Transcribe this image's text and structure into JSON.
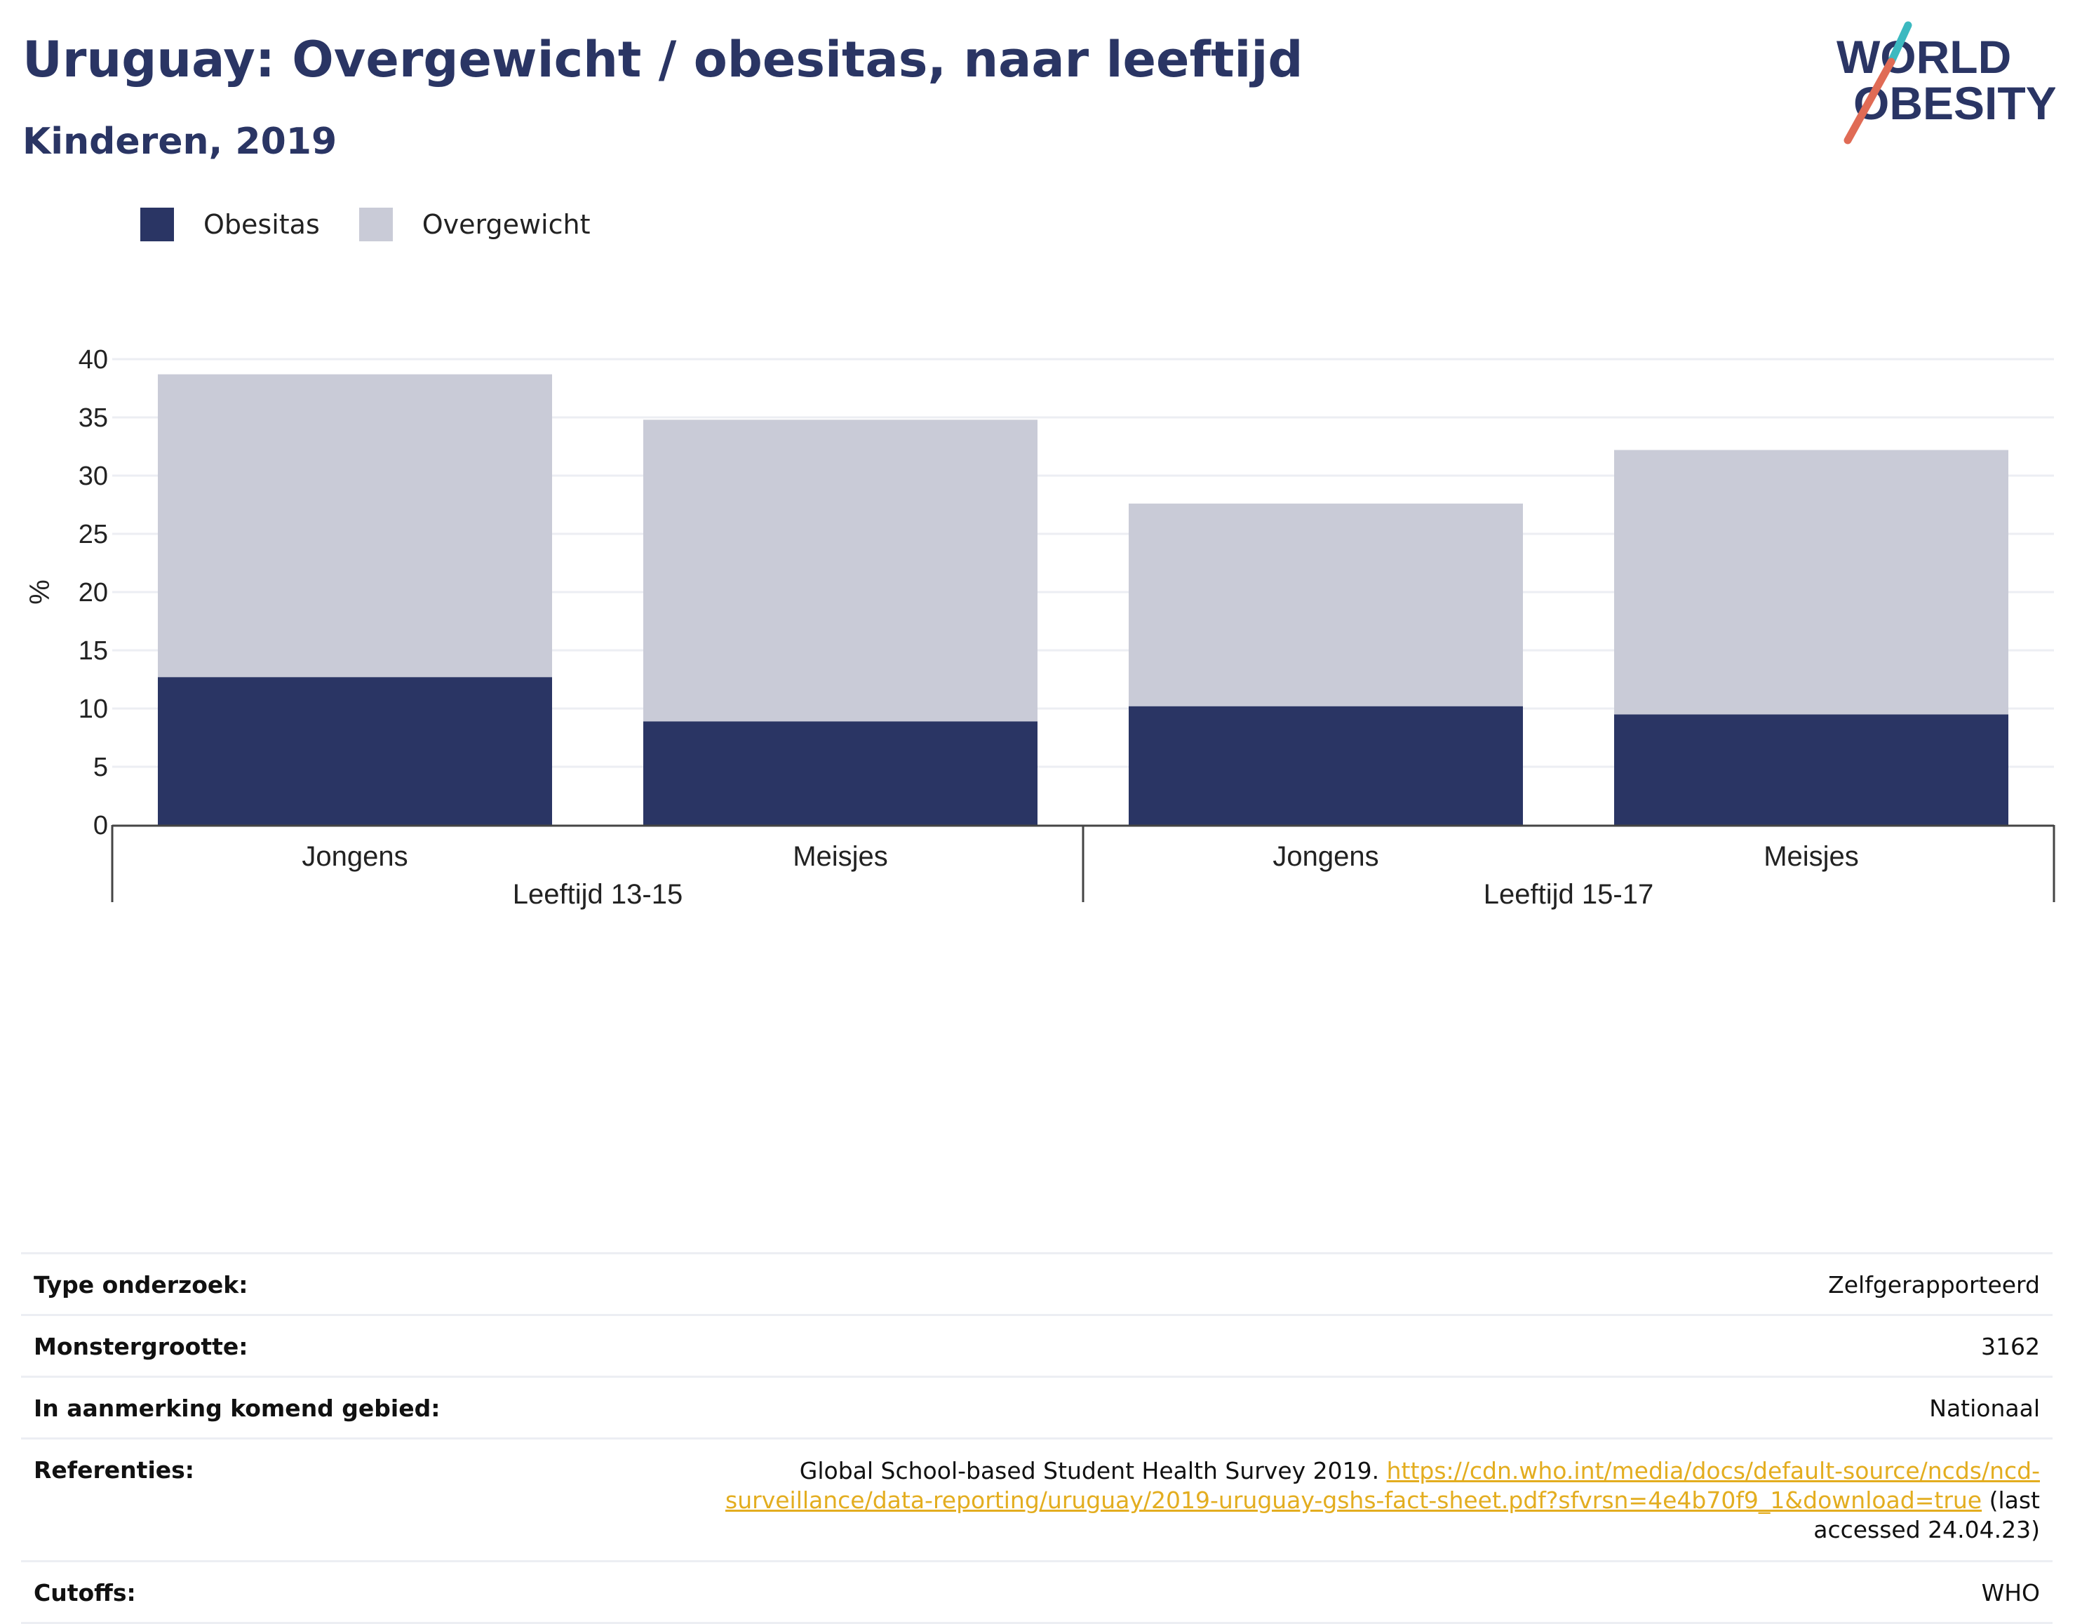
{
  "header": {
    "title": "Uruguay: Overgewicht / obesitas, naar leeftijd",
    "subtitle": "Kinderen, 2019"
  },
  "logo": {
    "line1": "WORLD",
    "line2": "OBESITY"
  },
  "legend": [
    {
      "label": "Obesitas",
      "color": "#2a3564"
    },
    {
      "label": "Overgewicht",
      "color": "#c9cbd7"
    }
  ],
  "chart_data": {
    "type": "bar",
    "stacked": true,
    "ylabel": "%",
    "ylim": [
      0,
      40
    ],
    "yticks": [
      0,
      5,
      10,
      15,
      20,
      25,
      30,
      35,
      40
    ],
    "grid": true,
    "legend_position": "top-left",
    "categories": [
      "Jongens",
      "Meisjes",
      "Jongens",
      "Meisjes"
    ],
    "groups": [
      {
        "label": "Leeftijd 13-15",
        "categories": [
          0,
          1
        ]
      },
      {
        "label": "Leeftijd 15-17",
        "categories": [
          2,
          3
        ]
      }
    ],
    "series": [
      {
        "name": "Obesitas",
        "color": "#2a3564",
        "values": [
          12.7,
          8.9,
          10.2,
          9.5
        ]
      },
      {
        "name": "Overgewicht",
        "color": "#c9cbd7",
        "values": [
          26.0,
          25.9,
          17.4,
          22.7
        ]
      }
    ]
  },
  "info": {
    "rows": [
      {
        "label": "Type onderzoek:",
        "value": "Zelfgerapporteerd"
      },
      {
        "label": "Monstergrootte:",
        "value": "3162"
      },
      {
        "label": "In aanmerking komend gebied:",
        "value": "Nationaal"
      }
    ],
    "references": {
      "label": "Referenties:",
      "text": "Global School-based Student Health Survey 2019. ",
      "link": "https://cdn.who.int/media/docs/default-source/ncds/ncd-surveillance/data-reporting/uruguay/2019-uruguay-gshs-fact-sheet.pdf?sfvrsn=4e4b70f9_1&download=true",
      "suffix": " (last accessed 24.04.23)"
    },
    "cutoffs": {
      "label": "Cutoffs:",
      "value": "WHO"
    }
  }
}
